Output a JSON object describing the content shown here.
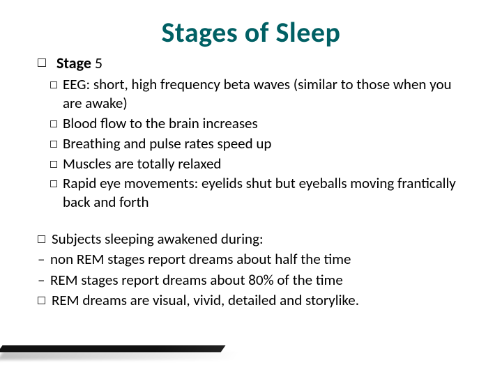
{
  "title": {
    "text": "Stages of Sleep",
    "color": "#006064",
    "fontsize_pt": 40
  },
  "stage": {
    "label": "Stage",
    "number": "5",
    "bullets": [
      "EEG: short, high frequency beta waves (similar to those when you are awake)",
      "Blood flow to the brain increases",
      "Breathing and pulse rates speed up",
      "Muscles are totally relaxed",
      "Rapid eye movements: eyelids shut but eyeballs moving frantically back and forth"
    ]
  },
  "section2": {
    "lead": "Subjects sleeping awakened during:",
    "dash_items": [
      "non REM stages report dreams about half the time",
      "REM stages report dreams about 80% of the time"
    ],
    "box_item": "REM dreams are visual, vivid, detailed and storylike."
  },
  "style": {
    "body_text_color": "#000000",
    "background_color": "#ffffff",
    "body_fontsize_pt": 21,
    "bullet_marker": "hollow-square",
    "font_family": "Calibri"
  }
}
